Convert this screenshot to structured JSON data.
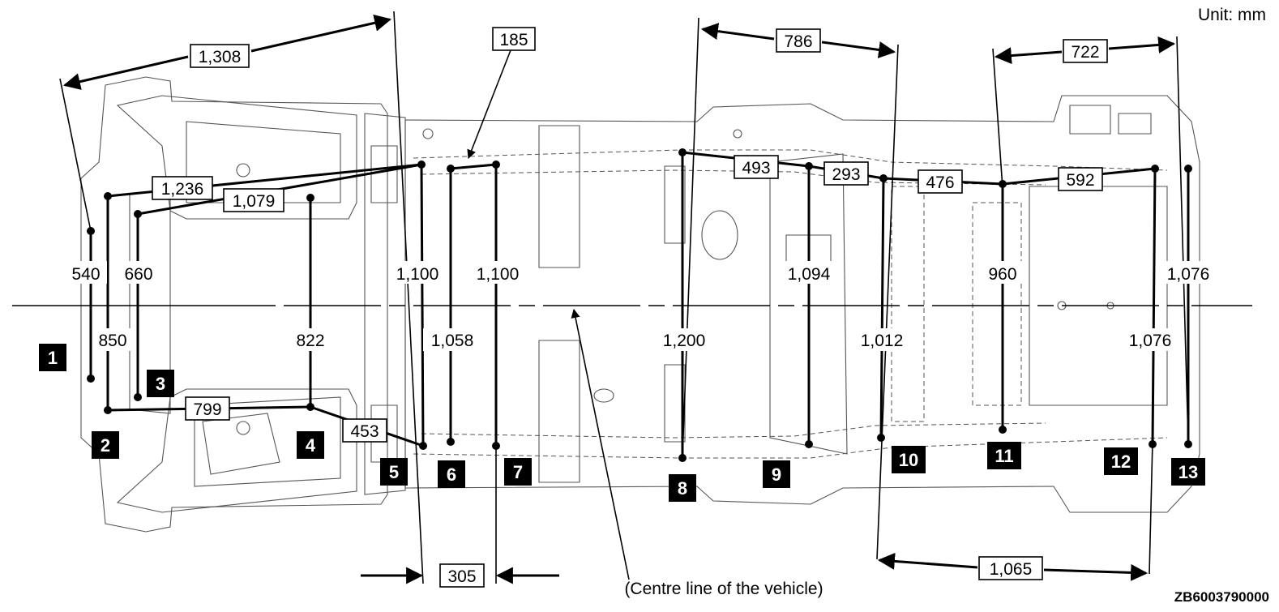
{
  "unit_label": "Unit: mm",
  "figure_code": "ZB6003790000",
  "centre_line_label": "(Centre line of the vehicle)",
  "markers": [
    "1",
    "2",
    "3",
    "4",
    "5",
    "6",
    "7",
    "8",
    "9",
    "10",
    "11",
    "12",
    "13"
  ],
  "dimensions": {
    "d1308": "1,308",
    "d185": "185",
    "d786": "786",
    "d722": "722",
    "d1236": "1,236",
    "d1079": "1,079",
    "d493": "493",
    "d293": "293",
    "d476": "476",
    "d592": "592",
    "d540": "540",
    "d660": "660",
    "d850": "850",
    "d822": "822",
    "d1100a": "1,100",
    "d1100b": "1,100",
    "d1058": "1,058",
    "d1200": "1,200",
    "d1094": "1,094",
    "d1012": "1,012",
    "d960": "960",
    "d1076a": "1,076",
    "d1076b": "1,076",
    "d799": "799",
    "d453": "453",
    "d305": "305",
    "d1065": "1,065"
  }
}
